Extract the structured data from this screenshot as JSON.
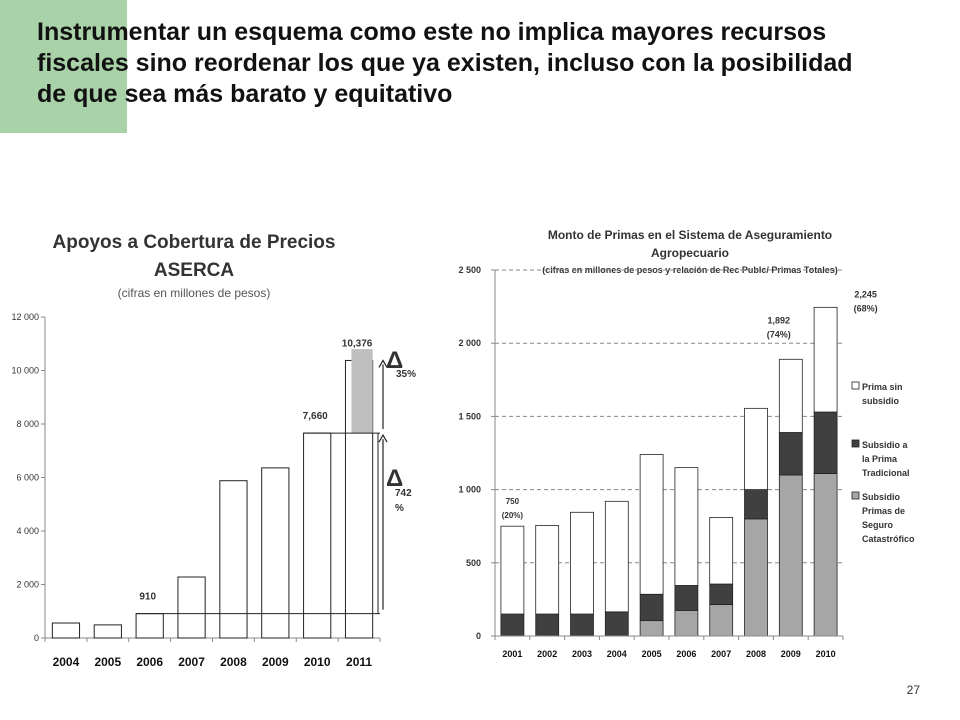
{
  "slide": {
    "title_lines": [
      "Instrumentar  un esquema como este no implica mayores recursos",
      "fiscales sino reordenar los que ya existen, incluso con la posibilidad",
      "de que sea más barato y equitativo"
    ],
    "page_number": "27",
    "accent_color": "#a9d2a9"
  },
  "chart_data": [
    {
      "type": "bar",
      "title_line1": "Apoyos a Cobertura de Precios",
      "title_line2": "ASERCA",
      "subtitle": "(cifras en millones de pesos)",
      "categories": [
        "2004",
        "2005",
        "2006",
        "2007",
        "2008",
        "2009",
        "2010",
        "2011"
      ],
      "values": [
        560,
        490,
        910,
        2280,
        5880,
        6360,
        7660,
        10376
      ],
      "ylim": [
        0,
        12000
      ],
      "yticks": [
        0,
        2000,
        4000,
        6000,
        8000,
        10000,
        12000
      ],
      "ytick_labels": [
        "0",
        "2 000",
        "4 000",
        "6 000",
        "8 000",
        "10 000",
        "12 000"
      ],
      "data_labels": [
        {
          "index": 2,
          "text": "910"
        },
        {
          "index": 6,
          "text": "7,660"
        },
        {
          "index": 7,
          "text": "10,376"
        }
      ],
      "highlight": {
        "from": 7660,
        "to": 10800,
        "color": "#bfbfbf"
      },
      "annotations": [
        {
          "symbol": "Δ",
          "text": "35%",
          "from": 7660,
          "to": 10376
        },
        {
          "symbol": "Δ",
          "text": "742 %",
          "from": 910,
          "to": 7660
        }
      ]
    },
    {
      "type": "stacked-bar",
      "title_line1": "Monto de Primas en el Sistema de Aseguramiento",
      "title_line2": "Agropecuario",
      "subtitle": "(cifras en millones de pesos y relación de Rec Publc/ Primas Totales)",
      "categories": [
        "2001",
        "2002",
        "2003",
        "2004",
        "2005",
        "2006",
        "2007",
        "2008",
        "2009",
        "2010"
      ],
      "series": [
        {
          "name": "Subsidio Primas de Seguro Catastrófico",
          "color": "#a6a6a6",
          "values": [
            0,
            0,
            0,
            0,
            105,
            175,
            215,
            800,
            1100,
            1110
          ]
        },
        {
          "name": "Subsidio a la Prima Tradicional",
          "color": "#404040",
          "values": [
            150,
            150,
            150,
            165,
            180,
            170,
            140,
            200,
            290,
            420
          ]
        },
        {
          "name": "Prima sin subsidio",
          "color": "#ffffff",
          "values": [
            600,
            605,
            695,
            755,
            955,
            805,
            455,
            555,
            500,
            715
          ]
        }
      ],
      "ylim": [
        0,
        2500
      ],
      "yticks": [
        0,
        500,
        1000,
        1500,
        2000,
        2500
      ],
      "ytick_labels": [
        "0",
        "500",
        "1 000",
        "1 500",
        "2 000",
        "2 500"
      ],
      "legend_lines": [
        [
          "Prima sin",
          "subsidio"
        ],
        [
          "Subsidio a",
          "la Prima",
          "Tradicional"
        ],
        [
          "Subsidio",
          "Primas de",
          "Seguro",
          "Catastrófico"
        ]
      ],
      "data_labels": [
        {
          "index": 0,
          "lines": [
            "750",
            "(20%)"
          ]
        },
        {
          "index": 8,
          "lines": [
            "1,892",
            "(74%)"
          ]
        },
        {
          "index": 9,
          "lines": [
            "2,245",
            "(68%)"
          ]
        }
      ],
      "gridlines": true
    }
  ]
}
